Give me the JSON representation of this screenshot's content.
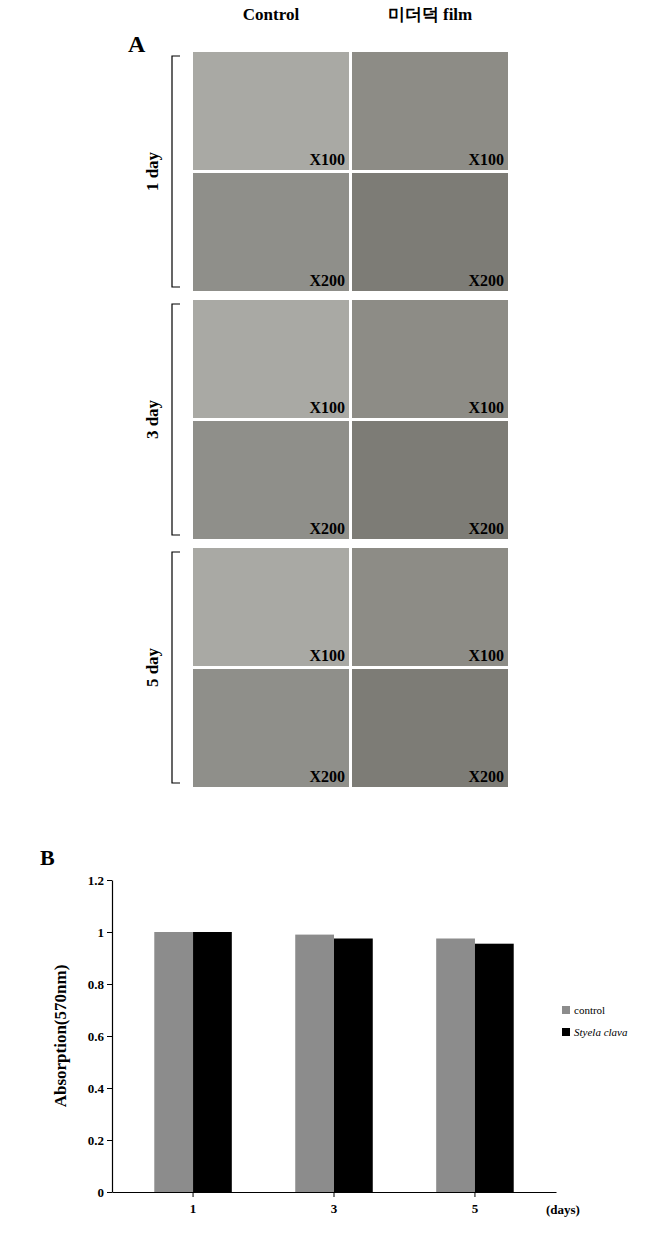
{
  "panel_labels": [
    "A",
    "B"
  ],
  "panel_a": {
    "columns": [
      "Control",
      "미더덕 film"
    ],
    "rows": [
      {
        "day": "1 day",
        "magnifications": [
          "X100",
          "X200"
        ]
      },
      {
        "day": "3 day",
        "magnifications": [
          "X100",
          "X200"
        ]
      },
      {
        "day": "5 day",
        "magnifications": [
          "X100",
          "X200"
        ]
      }
    ]
  },
  "chart_data": {
    "type": "bar",
    "categories": [
      "1",
      "3",
      "5"
    ],
    "x_label": "(days)",
    "y_label": "Absorption(570nm)",
    "series": [
      {
        "name": "control",
        "color": "#8c8c8c",
        "values": [
          1.0,
          0.99,
          0.975
        ]
      },
      {
        "name": "Styela clava",
        "color": "#000000",
        "values": [
          1.0,
          0.975,
          0.955
        ]
      }
    ],
    "ylim": [
      0,
      1.2
    ],
    "yticks": [
      0,
      0.2,
      0.4,
      0.6,
      0.8,
      1,
      1.2
    ],
    "grid": false,
    "legend": "right"
  }
}
